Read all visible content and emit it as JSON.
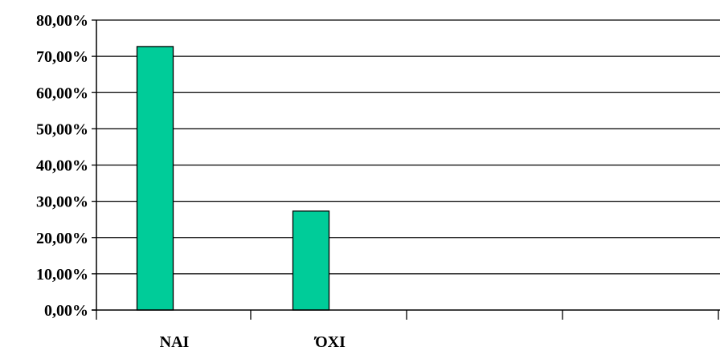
{
  "chart_data": {
    "type": "bar",
    "categories": [
      "NAI",
      "ΌΧΙ"
    ],
    "values": [
      72.7,
      27.3
    ],
    "value_format": "percent_comma_2dp",
    "ylim": [
      0,
      80
    ],
    "ytick_step": 10,
    "y_ticks": [
      "0,00%",
      "10,00%",
      "20,00%",
      "30,00%",
      "40,00%",
      "50,00%",
      "60,00%",
      "70,00%",
      "80,00%"
    ],
    "category_slots": 4,
    "title": "",
    "xlabel": "",
    "ylabel": "",
    "grid": true,
    "legend": "none",
    "bar_color": "#00cc99",
    "bar_outline_color": "#000000",
    "grid_color": "#000000"
  }
}
